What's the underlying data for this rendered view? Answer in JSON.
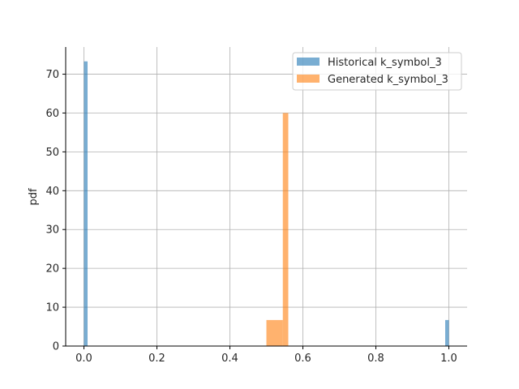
{
  "chart_data": {
    "type": "bar",
    "title": "",
    "xlabel": "",
    "ylabel": "pdf",
    "xlim": [
      -0.05,
      1.05
    ],
    "ylim": [
      0,
      77
    ],
    "xticks": [
      "0.0",
      "0.2",
      "0.4",
      "0.6",
      "0.8",
      "1.0"
    ],
    "xtick_values": [
      0.0,
      0.2,
      0.4,
      0.6,
      0.8,
      1.0
    ],
    "yticks": [
      "0",
      "10",
      "20",
      "30",
      "40",
      "50",
      "60",
      "70"
    ],
    "ytick_values": [
      0,
      10,
      20,
      30,
      40,
      50,
      60,
      70
    ],
    "grid": true,
    "legend_position": "top-right",
    "series": [
      {
        "name": "Historical k_symbol_3",
        "color": "#1f77b4",
        "opacity": 0.6,
        "bins": [
          {
            "x0": 0.0,
            "x1": 0.01,
            "value": 73.3
          },
          {
            "x0": 0.99,
            "x1": 1.0,
            "value": 6.7
          }
        ]
      },
      {
        "name": "Generated k_symbol_3",
        "color": "#ff7f0e",
        "opacity": 0.6,
        "bins": [
          {
            "x0": 0.5,
            "x1": 0.545,
            "value": 6.7
          },
          {
            "x0": 0.545,
            "x1": 0.56,
            "value": 60.0
          }
        ]
      }
    ]
  }
}
